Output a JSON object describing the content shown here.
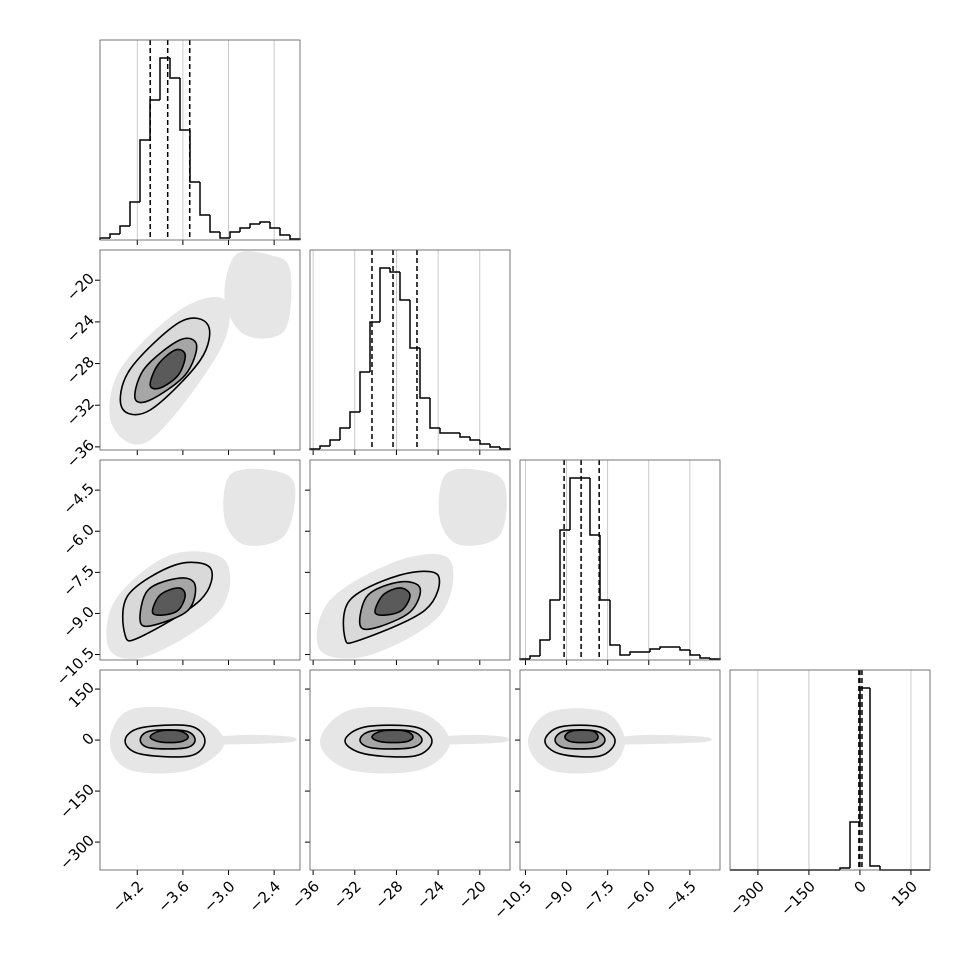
{
  "chart_data": {
    "type": "corner",
    "color": "#000000",
    "grid": true,
    "grid_color": "#bdbdbd",
    "cloud_color": "#e6e6e6",
    "fill_colors": [
      "#d9d9d9",
      "#a6a6a6",
      "#5a5a5a"
    ],
    "parameters": [
      {
        "lim": [
          -4.69,
          -2.06
        ],
        "ticks": [
          {
            "value": -4.2,
            "label": "−4.2"
          },
          {
            "value": -3.6,
            "label": "−3.6"
          },
          {
            "value": -3.0,
            "label": "−3.0"
          },
          {
            "value": -2.4,
            "label": "−2.4"
          }
        ],
        "quantiles": [
          -4.03,
          -3.8,
          -3.51
        ],
        "bins": [
          -4.69,
          -4.5585,
          -4.427,
          -4.2955,
          -4.164,
          -4.0325,
          -3.901,
          -3.7695,
          -3.638,
          -3.5065,
          -3.375,
          -3.2435,
          -3.112,
          -2.9805,
          -2.849,
          -2.7175,
          -2.586,
          -2.4545,
          -2.323,
          -2.1915,
          -2.06
        ],
        "counts": [
          2,
          6,
          14,
          38,
          100,
          140,
          182,
          162,
          110,
          58,
          25,
          8,
          2,
          8,
          12,
          16,
          18,
          12,
          5,
          1
        ],
        "count_lim": [
          0,
          200
        ]
      },
      {
        "lim": [
          -36.3,
          -17.1
        ],
        "ticks": [
          {
            "value": -36,
            "label": "−36"
          },
          {
            "value": -32,
            "label": "−32"
          },
          {
            "value": -28,
            "label": "−28"
          },
          {
            "value": -24,
            "label": "−24"
          },
          {
            "value": -20,
            "label": "−20"
          }
        ],
        "quantiles": [
          -30.35,
          -28.33,
          -26.03
        ],
        "bins": [
          -36.3,
          -35.34,
          -34.38,
          -33.42,
          -32.46,
          -31.5,
          -30.54,
          -29.58,
          -28.62,
          -27.66,
          -26.7,
          -25.74,
          -24.78,
          -23.82,
          -22.86,
          -21.9,
          -20.94,
          -19.98,
          -19.02,
          -18.06,
          -17.1
        ],
        "counts": [
          1,
          4,
          10,
          22,
          38,
          78,
          128,
          182,
          178,
          150,
          102,
          52,
          22,
          17,
          17,
          13,
          10,
          6,
          3,
          1
        ],
        "count_lim": [
          0,
          200
        ]
      },
      {
        "lim": [
          -10.7,
          -3.4
        ],
        "ticks": [
          {
            "value": -10.5,
            "label": "−10.5"
          },
          {
            "value": -9.0,
            "label": "−9.0"
          },
          {
            "value": -7.5,
            "label": "−7.5"
          },
          {
            "value": -6.0,
            "label": "−6.0"
          },
          {
            "value": -4.5,
            "label": "−4.5"
          }
        ],
        "quantiles": [
          -9.09,
          -8.47,
          -7.81
        ],
        "bins": [
          -10.7,
          -10.335,
          -9.97,
          -9.605,
          -9.24,
          -8.875,
          -8.51,
          -8.145,
          -7.78,
          -7.415,
          -7.05,
          -6.685,
          -6.32,
          -5.955,
          -5.59,
          -5.225,
          -4.86,
          -4.495,
          -4.13,
          -3.765,
          -3.4
        ],
        "counts": [
          1,
          4,
          20,
          60,
          130,
          182,
          182,
          125,
          60,
          15,
          5,
          8,
          8,
          11,
          13,
          13,
          10,
          5,
          2,
          1
        ],
        "count_lim": [
          0,
          200
        ]
      },
      {
        "lim": [
          -382,
          206
        ],
        "ticks": [
          {
            "value": -300,
            "label": "−300"
          },
          {
            "value": -150,
            "label": "−150"
          },
          0,
          150
        ],
        "quantiles": [
          -3,
          0,
          6
        ],
        "bins": [
          -382,
          -352.6,
          -323.2,
          -293.8,
          -264.4,
          -235,
          -205.6,
          -176.2,
          -146.8,
          -117.4,
          -88,
          -58.6,
          -29.2,
          0.2,
          29.6,
          59,
          88.4,
          117.8,
          147.2,
          176.6,
          206
        ],
        "counts": [
          0,
          0,
          0,
          0,
          0,
          0,
          0,
          0,
          0,
          0,
          0,
          2,
          48,
          182,
          4,
          0,
          0,
          0,
          0,
          0
        ],
        "count_lim": [
          0,
          200
        ]
      }
    ],
    "pairs": [
      {
        "clouds": [
          {
            "x": [
              -4.53,
              -4.43,
              -3.64,
              -3.05,
              -3.11,
              -4.03
            ],
            "y": [
              -33.9,
              -28.62,
              -22.86,
              -21.9,
              -26.7,
              -35.34
            ]
          },
          {
            "x": [
              -3.05,
              -2.91,
              -2.45,
              -2.19,
              -2.26,
              -2.78
            ],
            "y": [
              -21.9,
              -17.59,
              -17.59,
              -19.03,
              -24.78,
              -25.26
            ]
          }
        ],
        "contours": [
          {
            "x": [
              -4.4,
              -4.3,
              -3.64,
              -3.27,
              -3.37,
              -4.03
            ],
            "y": [
              -32.27,
              -28.62,
              -24.02,
              -24.3,
              -27.66,
              -32.46
            ]
          },
          {
            "x": [
              -4.23,
              -4.1,
              -3.64,
              -3.42,
              -3.57,
              -4.03
            ],
            "y": [
              -31.31,
              -28.43,
              -25.74,
              -26.22,
              -29.1,
              -31.5
            ]
          },
          {
            "x": [
              -4.03,
              -3.93,
              -3.7,
              -3.57,
              -3.66,
              -3.9
            ],
            "y": [
              -30.06,
              -28.14,
              -26.7,
              -27.18,
              -29.1,
              -30.35
            ]
          }
        ]
      },
      {
        "clouds": [
          {
            "x": [
              -4.56,
              -4.49,
              -3.77,
              -3.05,
              -3.11,
              -4.03
            ],
            "y": [
              -10.34,
              -8.51,
              -6.87,
              -7.05,
              -8.88,
              -10.52
            ]
          },
          {
            "x": [
              -3.05,
              -2.98,
              -2.45,
              -2.13,
              -2.26,
              -2.78
            ],
            "y": [
              -5.59,
              -3.95,
              -3.77,
              -4.31,
              -6.14,
              -6.5
            ]
          }
        ],
        "contours": [
          {
            "x": [
              -4.36,
              -4.32,
              -3.7,
              -3.24,
              -3.37,
              -4.16
            ],
            "y": [
              -9.79,
              -8.33,
              -7.23,
              -7.34,
              -8.51,
              -9.86
            ]
          },
          {
            "x": [
              -4.16,
              -4.06,
              -3.64,
              -3.44,
              -3.53,
              -3.97
            ],
            "y": [
              -9.31,
              -8.15,
              -7.71,
              -7.96,
              -8.88,
              -9.42
            ]
          },
          {
            "x": [
              -4.0,
              -3.9,
              -3.66,
              -3.57,
              -3.66,
              -3.87
            ],
            "y": [
              -8.95,
              -8.33,
              -8.07,
              -8.33,
              -8.88,
              -9.06
            ]
          }
        ]
      },
      {
        "clouds": [
          {
            "x": [
              -35.34,
              -34.38,
              -27.66,
              -22.86,
              -23.82,
              -30.54
            ],
            "y": [
              -10.34,
              -8.51,
              -7.05,
              -7.05,
              -9.06,
              -10.52
            ]
          },
          {
            "x": [
              -23.82,
              -23.34,
              -19.98,
              -17.58,
              -18.07,
              -21.9
            ],
            "y": [
              -5.59,
              -3.95,
              -3.77,
              -4.31,
              -6.14,
              -6.5
            ]
          }
        ],
        "contours": [
          {
            "x": [
              -32.94,
              -32.46,
              -27.66,
              -24.02,
              -25.26,
              -31.5
            ],
            "y": [
              -9.9,
              -8.51,
              -7.6,
              -7.6,
              -8.88,
              -9.97
            ]
          },
          {
            "x": [
              -31.5,
              -30.73,
              -27.66,
              -25.74,
              -26.7,
              -30.06
            ],
            "y": [
              -9.42,
              -8.33,
              -7.85,
              -8.07,
              -8.95,
              -9.53
            ]
          },
          {
            "x": [
              -30.06,
              -29.29,
              -27.66,
              -26.7,
              -27.47,
              -29.1
            ],
            "y": [
              -8.95,
              -8.33,
              -8.07,
              -8.33,
              -8.88,
              -9.06
            ]
          }
        ]
      },
      {
        "clouds": [
          {
            "x": [
              -4.56,
              -4.3,
              -3.51,
              -3.05,
              -3.51,
              -4.3
            ],
            "y": [
              -5.5,
              88.6,
              82.7,
              -5.5,
              -87.9,
              -87.9
            ]
          },
          {
            "x": [
              -3.31,
              -2.72,
              -2.17,
              -2.17,
              -2.72,
              -3.31
            ],
            "y": [
              6.2,
              15.1,
              9.2,
              -5.5,
              -11.4,
              -11.4
            ]
          }
        ],
        "contours": [
          {
            "x": [
              -4.36,
              -4.16,
              -3.51,
              -3.31,
              -3.51,
              -4.16
            ],
            "y": [
              -2.6,
              35.6,
              41.5,
              -2.6,
              -46.7,
              -40.8
            ]
          },
          {
            "x": [
              -4.16,
              -4.03,
              -3.57,
              -3.44,
              -3.57,
              -4.03
            ],
            "y": [
              0.35,
              26.8,
              26.8,
              0.35,
              -23.2,
              -23.2
            ]
          },
          {
            "x": [
              -4.03,
              -3.9,
              -3.64,
              -3.53,
              -3.64,
              -3.9
            ],
            "y": [
              9.2,
              26.8,
              26.8,
              9.2,
              -5.5,
              -5.5
            ]
          }
        ]
      },
      {
        "clouds": [
          {
            "x": [
              -35.34,
              -32.46,
              -25.74,
              -22.86,
              -25.74,
              -32.46
            ],
            "y": [
              -5.5,
              88.6,
              82.7,
              -5.5,
              -87.9,
              -87.9
            ]
          },
          {
            "x": [
              -24.78,
              -20.94,
              -17.59,
              -17.59,
              -20.94,
              -24.78
            ],
            "y": [
              6.2,
              15.1,
              9.2,
              -5.5,
              -11.4,
              -11.4
            ]
          }
        ],
        "contours": [
          {
            "x": [
              -32.94,
              -31.02,
              -26.22,
              -24.59,
              -26.22,
              -31.02
            ],
            "y": [
              -2.6,
              38.6,
              38.6,
              -2.6,
              -46.7,
              -40.8
            ]
          },
          {
            "x": [
              -31.5,
              -30.35,
              -26.7,
              -25.55,
              -26.7,
              -30.35
            ],
            "y": [
              0.35,
              26.8,
              26.8,
              0.35,
              -23.2,
              -23.2
            ]
          },
          {
            "x": [
              -30.35,
              -29.39,
              -27.18,
              -26.41,
              -27.18,
              -29.39
            ],
            "y": [
              9.2,
              26.8,
              26.8,
              9.2,
              -5.5,
              -5.5
            ]
          }
        ]
      },
      {
        "clouds": [
          {
            "x": [
              -10.41,
              -9.61,
              -7.6,
              -6.87,
              -7.6,
              -9.61
            ],
            "y": [
              -5.5,
              82.7,
              82.7,
              -5.5,
              -87.9,
              -87.9
            ]
          },
          {
            "x": [
              -7.23,
              -5.96,
              -3.95,
              -3.95,
              -5.96,
              -7.23
            ],
            "y": [
              6.2,
              15.1,
              9.2,
              -5.5,
              -11.4,
              -11.4
            ]
          }
        ],
        "contours": [
          {
            "x": [
              -9.79,
              -9.24,
              -7.78,
              -7.23,
              -7.78,
              -9.24
            ],
            "y": [
              -2.6,
              38.6,
              38.6,
              -2.6,
              -46.7,
              -40.8
            ]
          },
          {
            "x": [
              -9.42,
              -9.06,
              -7.96,
              -7.6,
              -7.96,
              -9.06
            ],
            "y": [
              0.35,
              26.8,
              26.8,
              0.35,
              -23.2,
              -23.2
            ]
          },
          {
            "x": [
              -9.06,
              -8.8,
              -8.07,
              -7.85,
              -8.07,
              -8.8
            ],
            "y": [
              9.2,
              26.8,
              26.8,
              9.2,
              -5.5,
              -5.5
            ]
          }
        ]
      }
    ]
  }
}
